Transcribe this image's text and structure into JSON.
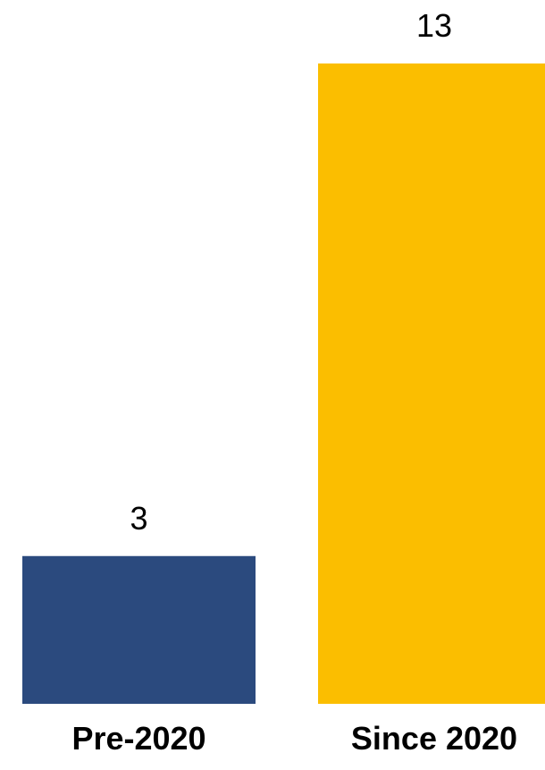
{
  "chart_data": {
    "type": "bar",
    "categories": [
      "Pre-2020",
      "Since 2020"
    ],
    "values": [
      3,
      13
    ],
    "colors": [
      "#2b4a7e",
      "#fbbe00"
    ],
    "data_labels": [
      "3",
      "13"
    ],
    "ylim": [
      0,
      13
    ],
    "grid": false,
    "legend": "none"
  }
}
